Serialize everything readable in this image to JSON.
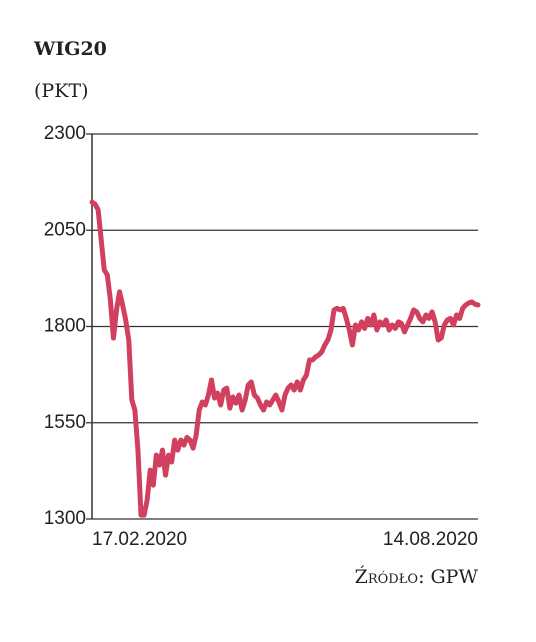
{
  "chart_data": {
    "type": "line",
    "title": "WIG20",
    "subtitle": "(PKT)",
    "source": "Źródło: GPW",
    "color": "#d2405f",
    "ylim": [
      1300,
      2300
    ],
    "yticks": [
      1300,
      1550,
      1800,
      2050,
      2300
    ],
    "grid": true,
    "categories": [
      "17.02.2020",
      null,
      null,
      null,
      null,
      null,
      null,
      null,
      null,
      null,
      null,
      null,
      null,
      null,
      null,
      null,
      null,
      null,
      null,
      null,
      null,
      null,
      null,
      null,
      null,
      null,
      null,
      null,
      null,
      null,
      null,
      null,
      null,
      null,
      null,
      null,
      null,
      null,
      null,
      null,
      null,
      null,
      null,
      null,
      null,
      null,
      null,
      null,
      null,
      null,
      null,
      null,
      null,
      null,
      null,
      null,
      null,
      null,
      null,
      null,
      null,
      null,
      null,
      null,
      null,
      null,
      null,
      null,
      null,
      null,
      null,
      null,
      null,
      null,
      null,
      null,
      null,
      null,
      null,
      null,
      null,
      null,
      null,
      null,
      null,
      null,
      null,
      null,
      null,
      null,
      null,
      null,
      null,
      null,
      null,
      null,
      null,
      null,
      null,
      null,
      null,
      null,
      null,
      null,
      null,
      null,
      null,
      null,
      null,
      null,
      null,
      null,
      null,
      null,
      null,
      null,
      null,
      null,
      null,
      null,
      null,
      null,
      null,
      null,
      null,
      null,
      "14.08.2020"
    ],
    "values": [
      2123,
      2118,
      2103,
      2025,
      1947,
      1934,
      1869,
      1770,
      1843,
      1890,
      1856,
      1817,
      1765,
      1609,
      1583,
      1479,
      1310,
      1310,
      1349,
      1427,
      1388,
      1466,
      1440,
      1479,
      1414,
      1466,
      1448,
      1505,
      1479,
      1505,
      1492,
      1512,
      1505,
      1484,
      1518,
      1583,
      1604,
      1596,
      1622,
      1661,
      1614,
      1627,
      1596,
      1635,
      1640,
      1588,
      1617,
      1601,
      1622,
      1583,
      1609,
      1648,
      1656,
      1622,
      1614,
      1596,
      1583,
      1604,
      1596,
      1609,
      1622,
      1604,
      1583,
      1622,
      1640,
      1648,
      1635,
      1656,
      1635,
      1661,
      1674,
      1713,
      1713,
      1721,
      1726,
      1734,
      1752,
      1765,
      1791,
      1843,
      1847,
      1843,
      1847,
      1821,
      1791,
      1752,
      1804,
      1791,
      1812,
      1795,
      1821,
      1804,
      1830,
      1791,
      1812,
      1804,
      1817,
      1791,
      1804,
      1795,
      1812,
      1808,
      1786,
      1804,
      1821,
      1843,
      1838,
      1821,
      1812,
      1830,
      1821,
      1838,
      1812,
      1765,
      1770,
      1804,
      1817,
      1821,
      1804,
      1830,
      1821,
      1847,
      1856,
      1861,
      1864,
      1858,
      1856
    ]
  }
}
